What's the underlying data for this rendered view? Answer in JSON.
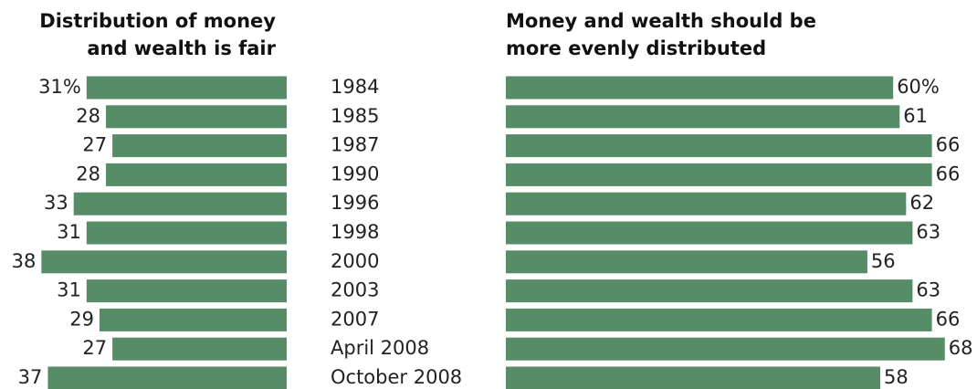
{
  "chart_data": {
    "type": "bar",
    "categories": [
      "1984",
      "1985",
      "1987",
      "1990",
      "1996",
      "1998",
      "2000",
      "2003",
      "2007",
      "April 2008",
      "October 2008"
    ],
    "series": [
      {
        "name": "Distribution of money and wealth is fair",
        "color": "#568c66",
        "values": [
          31,
          28,
          27,
          28,
          33,
          31,
          38,
          31,
          29,
          27,
          37
        ],
        "value_labels": [
          "31%",
          "28",
          "27",
          "28",
          "33",
          "31",
          "38",
          "31",
          "29",
          "27",
          "37"
        ]
      },
      {
        "name": "Money and wealth should be more evenly distributed",
        "color": "#568c66",
        "values": [
          60,
          61,
          66,
          66,
          62,
          63,
          56,
          63,
          66,
          68,
          58
        ],
        "value_labels": [
          "60%",
          "61",
          "66",
          "66",
          "62",
          "63",
          "56",
          "63",
          "66",
          "68",
          "58"
        ]
      }
    ]
  }
}
